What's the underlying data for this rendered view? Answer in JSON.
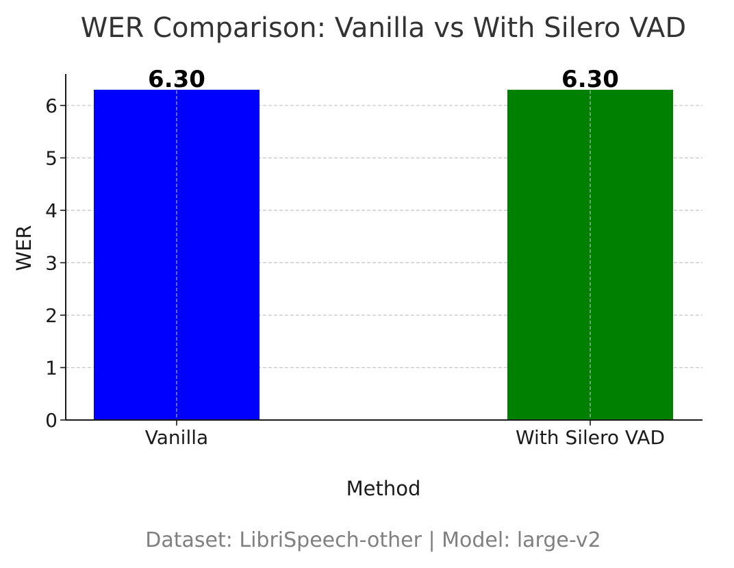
{
  "chart_data": {
    "type": "bar",
    "title": "WER Comparison: Vanilla vs With Silero VAD",
    "xlabel": "Method",
    "ylabel": "WER",
    "footnote": "Dataset: LibriSpeech-other | Model: large-v2",
    "categories": [
      "Vanilla",
      "With Silero VAD"
    ],
    "values": [
      6.3,
      6.3
    ],
    "value_labels": [
      "6.30",
      "6.30"
    ],
    "bar_colors": [
      "#0000ff",
      "#008000"
    ],
    "ylim": [
      0,
      6.6
    ],
    "yticks": [
      0,
      1,
      2,
      3,
      4,
      5,
      6
    ],
    "grid": true,
    "legend": "none"
  }
}
